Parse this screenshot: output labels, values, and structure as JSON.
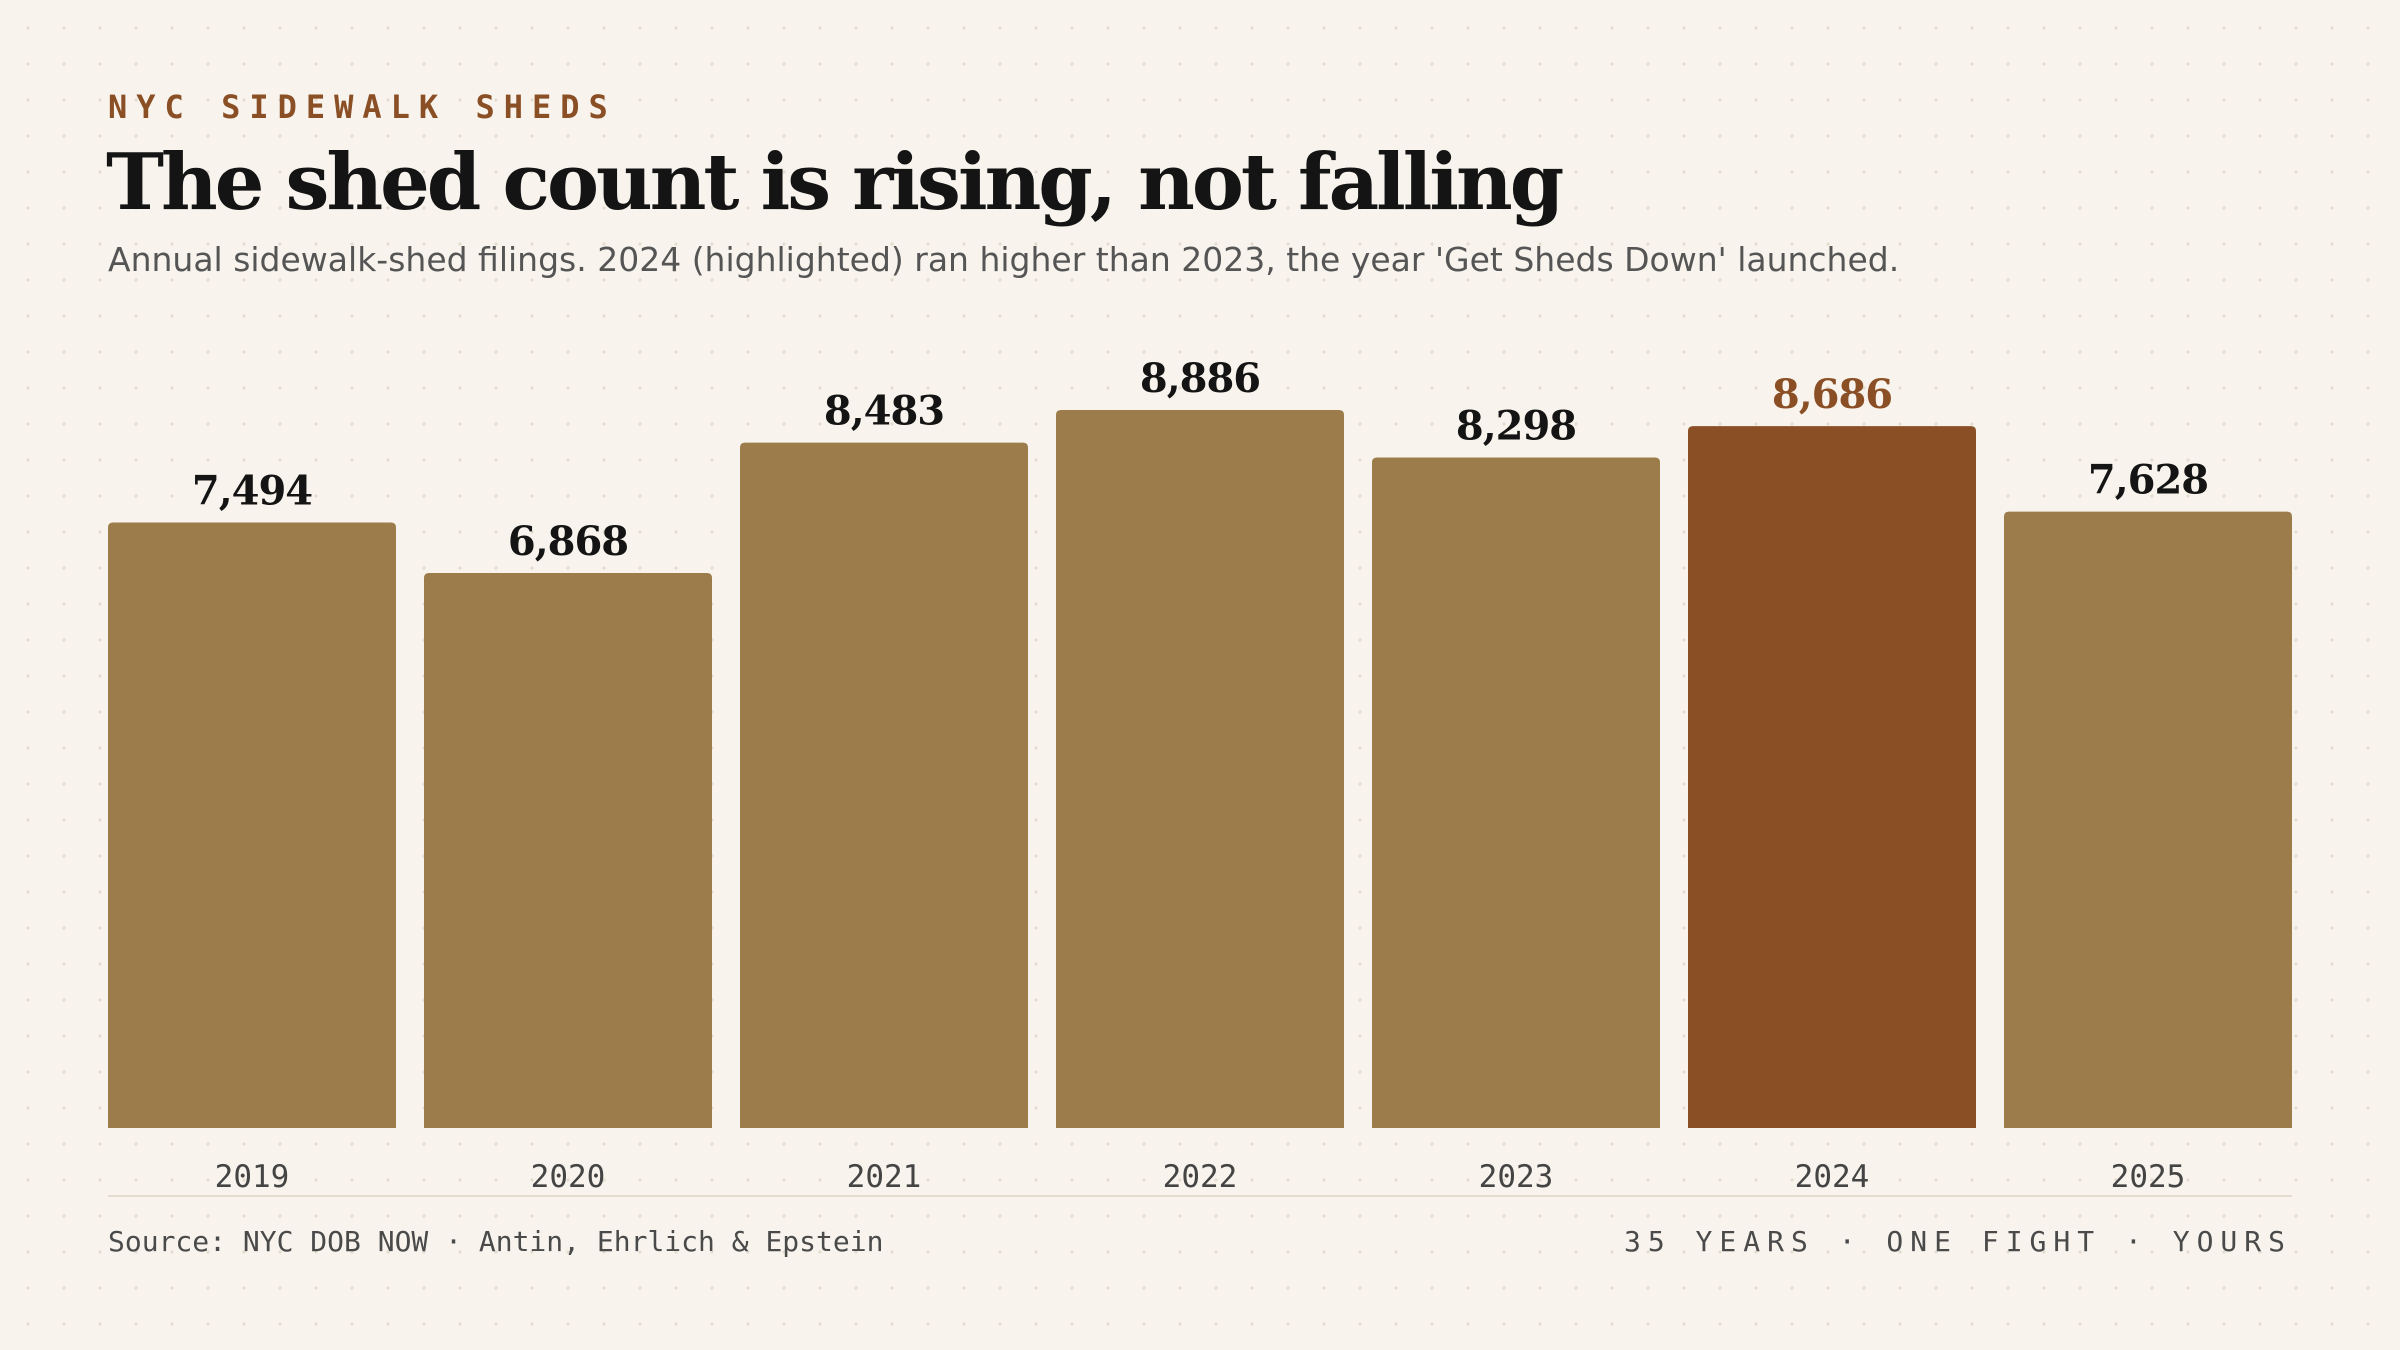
{
  "header": {
    "kicker": "NYC SIDEWALK SHEDS",
    "title": "The shed count is rising, not falling",
    "subtitle": "Annual sidewalk-shed filings. 2024 (highlighted) ran higher than 2023, the year 'Get Sheds Down' launched."
  },
  "footer": {
    "source": "Source: NYC DOB NOW · Antin, Ehrlich & Epstein",
    "tagline": "35 YEARS · ONE FIGHT · YOURS"
  },
  "colors": {
    "bar": "#9c7c4a",
    "highlight": "#8b4f25",
    "label": "#141414",
    "highlight_label": "#8b4f25"
  },
  "chart_data": {
    "type": "bar",
    "categories": [
      "2019",
      "2020",
      "2021",
      "2022",
      "2023",
      "2024",
      "2025"
    ],
    "values": [
      7494,
      6868,
      8483,
      8886,
      8298,
      8686,
      7628
    ],
    "value_labels": [
      "7,494",
      "6,868",
      "8,483",
      "8,886",
      "8,298",
      "8,686",
      "7,628"
    ],
    "highlight": "2024",
    "title": "The shed count is rising, not falling",
    "xlabel": "",
    "ylabel": "",
    "ylim": [
      0,
      8886
    ],
    "grid": false,
    "legend": "none"
  }
}
